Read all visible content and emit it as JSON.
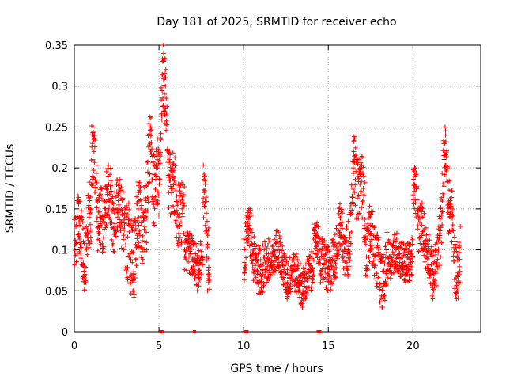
{
  "chart_data": {
    "type": "scatter",
    "title": "Day 181 of 2025, SRMTID for receiver echo",
    "xlabel": "GPS time / hours",
    "ylabel": "SRMTID / TECUs",
    "xlim": [
      0,
      24
    ],
    "ylim": [
      0,
      0.35
    ],
    "x_ticks": [
      0,
      5,
      10,
      15,
      20
    ],
    "x_tick_labels": [
      "0",
      "5",
      "10",
      "15",
      "20"
    ],
    "y_ticks": [
      0,
      0.05,
      0.1,
      0.15,
      0.2,
      0.25,
      0.3,
      0.35
    ],
    "y_tick_labels": [
      "0",
      "0.05",
      "0.1",
      "0.15",
      "0.2",
      "0.25",
      "0.3",
      "0.35"
    ],
    "grid": true,
    "marker": "+",
    "color": "#ff0000",
    "zero_markers_x": [
      5.1,
      5.2,
      7.1,
      10.1,
      10.2,
      14.4,
      14.5
    ],
    "series": [
      {
        "name": "SRMTID",
        "segments": [
          {
            "x_start": 0.0,
            "x_end": 1.0,
            "baseline": 0.105,
            "amplitude": 0.04,
            "peaks": [
              [
                0.3,
                0.14
              ],
              [
                0.6,
                0.08
              ],
              [
                0.9,
                0.16
              ]
            ]
          },
          {
            "x_start": 1.0,
            "x_end": 3.0,
            "baseline": 0.13,
            "amplitude": 0.04,
            "peaks": [
              [
                1.1,
                0.25
              ],
              [
                1.5,
                0.14
              ],
              [
                2.0,
                0.19
              ],
              [
                2.6,
                0.16
              ]
            ]
          },
          {
            "x_start": 3.0,
            "x_end": 4.0,
            "baseline": 0.11,
            "amplitude": 0.05,
            "peaks": [
              [
                3.5,
                0.07
              ],
              [
                3.8,
                0.17
              ]
            ]
          },
          {
            "x_start": 4.0,
            "x_end": 5.0,
            "baseline": 0.13,
            "amplitude": 0.05,
            "peaks": [
              [
                4.5,
                0.25
              ],
              [
                4.9,
                0.21
              ]
            ]
          },
          {
            "x_start": 5.0,
            "x_end": 6.5,
            "baseline": 0.15,
            "amplitude": 0.04,
            "peaks": [
              [
                5.25,
                0.35
              ],
              [
                5.35,
                0.31
              ],
              [
                5.8,
                0.2
              ],
              [
                6.2,
                0.14
              ]
            ]
          },
          {
            "x_start": 6.5,
            "x_end": 7.6,
            "baseline": 0.1,
            "amplitude": 0.025,
            "peaks": [
              [
                7.0,
                0.09
              ],
              [
                7.3,
                0.07
              ]
            ]
          },
          {
            "x_start": 7.6,
            "x_end": 8.0,
            "baseline": 0.13,
            "amplitude": 0.04,
            "peaks": [
              [
                7.7,
                0.19
              ],
              [
                7.9,
                0.07
              ]
            ]
          },
          {
            "x_start": 10.0,
            "x_end": 11.5,
            "baseline": 0.085,
            "amplitude": 0.03,
            "peaks": [
              [
                10.3,
                0.14
              ],
              [
                11.0,
                0.07
              ]
            ]
          },
          {
            "x_start": 11.5,
            "x_end": 13.0,
            "baseline": 0.08,
            "amplitude": 0.025,
            "peaks": [
              [
                12.0,
                0.11
              ],
              [
                12.6,
                0.06
              ]
            ]
          },
          {
            "x_start": 13.0,
            "x_end": 14.6,
            "baseline": 0.07,
            "amplitude": 0.025,
            "peaks": [
              [
                13.5,
                0.05
              ],
              [
                14.3,
                0.13
              ]
            ]
          },
          {
            "x_start": 14.6,
            "x_end": 16.0,
            "baseline": 0.09,
            "amplitude": 0.03,
            "peaks": [
              [
                15.0,
                0.07
              ],
              [
                15.7,
                0.14
              ]
            ]
          },
          {
            "x_start": 16.0,
            "x_end": 17.2,
            "baseline": 0.14,
            "amplitude": 0.04,
            "peaks": [
              [
                16.5,
                0.22
              ],
              [
                16.9,
                0.2
              ],
              [
                16.2,
                0.09
              ]
            ]
          },
          {
            "x_start": 17.2,
            "x_end": 18.5,
            "baseline": 0.09,
            "amplitude": 0.035,
            "peaks": [
              [
                17.5,
                0.13
              ],
              [
                18.2,
                0.05
              ]
            ]
          },
          {
            "x_start": 18.5,
            "x_end": 20.0,
            "baseline": 0.09,
            "amplitude": 0.025,
            "peaks": [
              [
                19.0,
                0.1
              ],
              [
                19.6,
                0.08
              ]
            ]
          },
          {
            "x_start": 20.0,
            "x_end": 21.5,
            "baseline": 0.1,
            "amplitude": 0.03,
            "peaks": [
              [
                20.1,
                0.2
              ],
              [
                20.5,
                0.14
              ],
              [
                21.2,
                0.06
              ]
            ]
          },
          {
            "x_start": 21.5,
            "x_end": 22.8,
            "baseline": 0.11,
            "amplitude": 0.035,
            "peaks": [
              [
                21.9,
                0.25
              ],
              [
                22.2,
                0.16
              ],
              [
                22.6,
                0.06
              ]
            ]
          }
        ]
      }
    ]
  }
}
